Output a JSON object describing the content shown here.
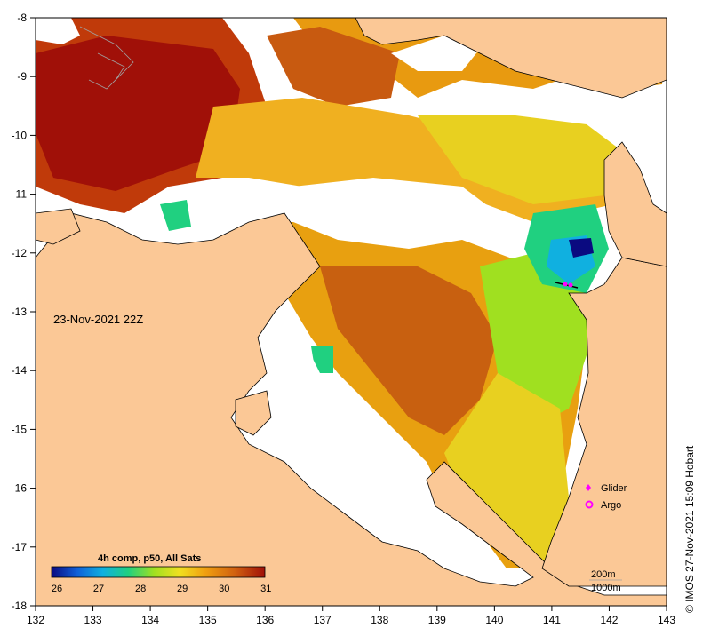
{
  "map": {
    "date_label": "23-Nov-2021 22Z",
    "credit": "© IMOS 27-Nov-2021 15:09 Hobart",
    "colors": {
      "land": "#fbc896",
      "nodata": "#ffffff",
      "frame": "#000000"
    }
  },
  "axes": {
    "x_ticks": [
      "132",
      "133",
      "134",
      "135",
      "136",
      "137",
      "138",
      "139",
      "140",
      "141",
      "142",
      "143"
    ],
    "y_ticks": [
      "-8",
      "-9",
      "-10",
      "-11",
      "-12",
      "-13",
      "-14",
      "-15",
      "-16",
      "-17",
      "-18"
    ]
  },
  "colorbar": {
    "title": "4h comp, p50, All Sats",
    "labels": [
      "26",
      "27",
      "28",
      "29",
      "30",
      "31"
    ],
    "min": 26,
    "max": 31.1,
    "stops": [
      "#0a0a80",
      "#1060d8",
      "#10b0e0",
      "#20d080",
      "#a0e020",
      "#f0e020",
      "#f0a010",
      "#d06010",
      "#a01008"
    ]
  },
  "legend": {
    "glider_label": "Glider",
    "argo_label": "Argo",
    "glider_icon": "diamond-icon",
    "argo_icon": "argo-circle-icon",
    "glider_color": "#ff00ff",
    "argo_color": "#ff00ff"
  },
  "contours": {
    "label_200": "200m",
    "label_1000": "1000m"
  }
}
